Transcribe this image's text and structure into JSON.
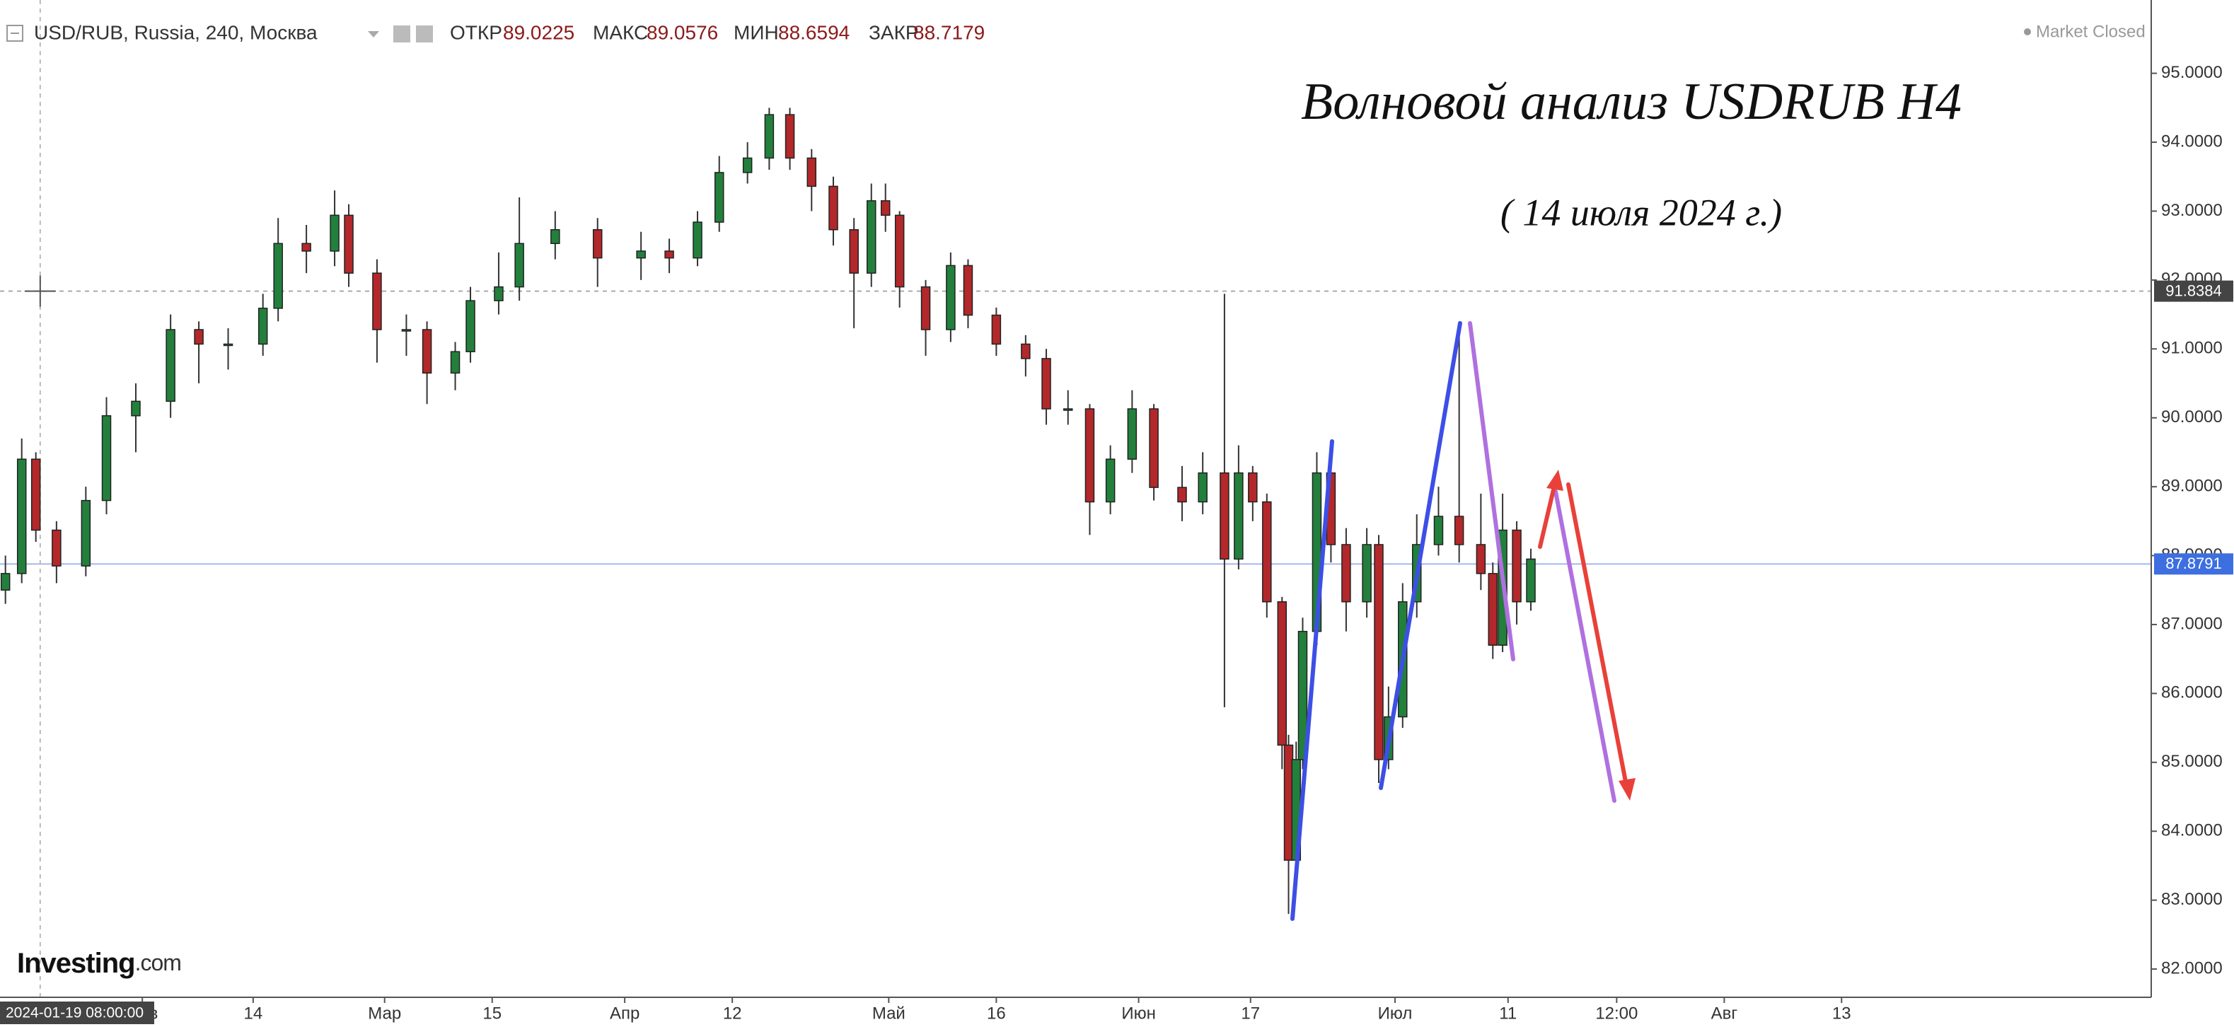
{
  "chart_data": {
    "type": "candlestick",
    "title": "Волновой анализ USDRUB H4",
    "subtitle": "( 14 июля 2024 г.)",
    "header": {
      "symbol": "USD/RUB, Russia, 240, Москва",
      "open_label": "ОТКР",
      "open": 89.0225,
      "high_label": "МАКС",
      "high": 89.0576,
      "low_label": "МИН",
      "low": 88.6594,
      "close_label": "ЗАКР",
      "close": 88.7179,
      "status": "Market Closed"
    },
    "logo": "Investing",
    "logo_suffix": ".com",
    "up_color": "#22803c",
    "down_color": "#b3282a",
    "x": [
      0.5,
      2.0,
      3.3,
      5.2,
      7.9,
      9.8,
      12.5,
      15.7,
      18.3,
      21.0,
      24.2,
      25.6,
      28.2,
      30.8,
      32.1,
      34.7,
      37.4,
      39.3,
      41.9,
      43.3,
      45.9,
      47.8,
      51.1,
      55.0,
      59.0,
      61.6,
      64.2,
      66.2,
      68.8,
      70.8,
      72.7,
      74.7,
      76.7,
      78.6,
      80.2,
      81.5,
      82.8,
      85.2,
      87.5,
      89.1,
      91.7,
      94.4,
      96.3,
      98.3,
      100.3,
      102.2,
      104.2,
      106.2,
      108.8,
      110.7,
      112.7,
      114.0,
      115.3,
      116.6,
      118.0,
      118.6,
      119.3,
      119.9,
      121.2,
      122.5,
      123.9,
      125.8,
      126.9,
      127.8,
      129.1,
      130.4,
      132.4,
      134.3,
      136.3,
      137.4,
      138.3,
      139.6,
      140.9
    ],
    "open": [
      87.5,
      87.74,
      89.4,
      88.37,
      87.85,
      88.8,
      90.03,
      90.24,
      91.28,
      91.07,
      91.07,
      91.59,
      92.53,
      92.42,
      92.94,
      92.1,
      91.28,
      91.28,
      90.65,
      90.96,
      91.7,
      91.9,
      92.53,
      92.73,
      92.32,
      92.42,
      92.32,
      92.84,
      93.56,
      93.77,
      94.4,
      93.77,
      93.36,
      92.73,
      92.1,
      93.15,
      92.94,
      91.9,
      91.28,
      92.21,
      91.49,
      91.07,
      90.86,
      90.13,
      90.13,
      88.78,
      89.4,
      90.13,
      88.99,
      88.78,
      89.2,
      87.95,
      89.2,
      88.78,
      87.33,
      85.25,
      83.58,
      85.04,
      86.9,
      89.2,
      88.16,
      87.33,
      88.16,
      85.04,
      85.66,
      87.33,
      88.16,
      88.57,
      88.16,
      87.74,
      86.7,
      88.37,
      87.33
    ],
    "high": [
      88.0,
      89.7,
      89.5,
      88.5,
      89.0,
      90.3,
      90.5,
      91.5,
      91.4,
      91.3,
      91.8,
      92.9,
      92.8,
      93.3,
      93.1,
      92.3,
      91.5,
      91.4,
      91.1,
      91.9,
      92.4,
      93.2,
      93.0,
      92.9,
      92.7,
      92.6,
      93.0,
      93.8,
      94.0,
      94.5,
      94.5,
      93.9,
      93.5,
      92.9,
      93.4,
      93.4,
      93.0,
      92.0,
      92.4,
      92.3,
      91.6,
      91.2,
      91.0,
      90.4,
      90.2,
      89.6,
      90.4,
      90.2,
      89.3,
      89.5,
      91.8,
      89.6,
      89.3,
      88.9,
      87.4,
      85.4,
      85.3,
      87.1,
      89.5,
      89.4,
      88.4,
      88.4,
      88.3,
      86.1,
      87.6,
      88.6,
      89.0,
      91.4,
      88.9,
      87.9,
      88.9,
      88.5,
      88.1
    ],
    "low": [
      87.3,
      87.6,
      88.2,
      87.6,
      87.7,
      88.6,
      89.5,
      90.0,
      90.5,
      90.7,
      90.9,
      91.4,
      92.1,
      92.2,
      91.9,
      90.8,
      90.9,
      90.2,
      90.4,
      90.8,
      91.5,
      91.7,
      92.3,
      91.9,
      92.0,
      92.1,
      92.2,
      92.7,
      93.4,
      93.6,
      93.6,
      93.0,
      92.5,
      91.3,
      91.9,
      92.7,
      91.6,
      90.9,
      91.1,
      91.3,
      90.9,
      90.6,
      89.9,
      89.9,
      88.3,
      88.6,
      89.2,
      88.8,
      88.5,
      88.6,
      85.8,
      87.8,
      88.5,
      87.1,
      84.9,
      82.8,
      83.4,
      84.9,
      86.7,
      87.9,
      86.9,
      87.1,
      84.7,
      84.9,
      85.5,
      87.1,
      88.0,
      87.9,
      87.5,
      86.5,
      86.6,
      87.0,
      87.2
    ],
    "close": [
      87.74,
      89.4,
      88.37,
      87.85,
      88.8,
      90.03,
      90.24,
      91.28,
      91.07,
      91.07,
      91.59,
      92.53,
      92.42,
      92.94,
      92.1,
      91.28,
      91.28,
      90.65,
      90.96,
      91.7,
      91.9,
      92.53,
      92.73,
      92.32,
      92.42,
      92.32,
      92.84,
      93.56,
      93.77,
      94.4,
      93.77,
      93.36,
      92.73,
      92.1,
      93.15,
      92.94,
      91.9,
      91.28,
      92.21,
      91.49,
      91.07,
      90.86,
      90.13,
      90.13,
      88.78,
      89.4,
      90.13,
      88.99,
      88.78,
      89.2,
      87.95,
      89.2,
      88.78,
      87.33,
      85.25,
      83.58,
      85.04,
      86.9,
      89.2,
      88.16,
      87.33,
      88.16,
      85.04,
      85.66,
      87.33,
      88.16,
      88.57,
      88.16,
      87.74,
      86.7,
      88.37,
      87.33,
      87.95
    ],
    "xlim": [
      0,
      198
    ],
    "xticks": [
      {
        "value": 13.1,
        "label": "Фев"
      },
      {
        "value": 23.3,
        "label": "14"
      },
      {
        "value": 35.4,
        "label": "Мар"
      },
      {
        "value": 45.3,
        "label": "15"
      },
      {
        "value": 57.5,
        "label": "Апр"
      },
      {
        "value": 67.4,
        "label": "12"
      },
      {
        "value": 81.8,
        "label": "Май"
      },
      {
        "value": 91.7,
        "label": "16"
      },
      {
        "value": 104.8,
        "label": "Июн"
      },
      {
        "value": 115.1,
        "label": "17"
      },
      {
        "value": 128.4,
        "label": "Июл"
      },
      {
        "value": 138.8,
        "label": "11"
      },
      {
        "value": 148.8,
        "label": "12:00"
      },
      {
        "value": 158.7,
        "label": "Авг"
      },
      {
        "value": 169.5,
        "label": "13"
      }
    ],
    "ylim": [
      81.59,
      95.53
    ],
    "yticks": [
      {
        "value": 82,
        "label": "82.0000"
      },
      {
        "value": 83,
        "label": "83.0000"
      },
      {
        "value": 84,
        "label": "84.0000"
      },
      {
        "value": 85,
        "label": "85.0000"
      },
      {
        "value": 86,
        "label": "86.0000"
      },
      {
        "value": 87,
        "label": "87.0000"
      },
      {
        "value": 88,
        "label": "88.0000"
      },
      {
        "value": 89,
        "label": "89.0000"
      },
      {
        "value": 90,
        "label": "90.0000"
      },
      {
        "value": 91,
        "label": "91.0000"
      },
      {
        "value": 92,
        "label": "92.0000"
      },
      {
        "value": 93,
        "label": "93.0000"
      },
      {
        "value": 94,
        "label": "94.0000"
      },
      {
        "value": 95,
        "label": "95.0000"
      }
    ],
    "crosshair_price": 91.8384,
    "crosshair_time": {
      "value": 3.7,
      "label": "2024-01-19 08:00:00"
    },
    "last_price": 87.8791
  }
}
